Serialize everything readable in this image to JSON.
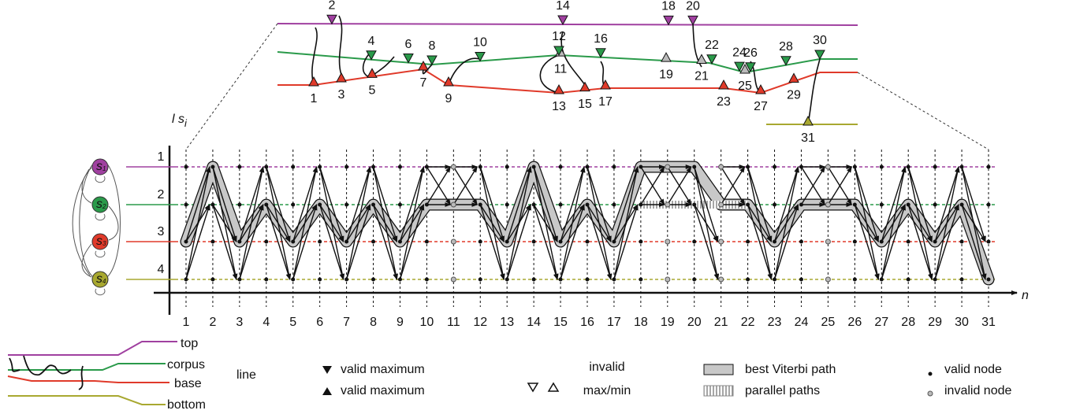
{
  "trace": {
    "extrema": [
      {
        "label": "1",
        "line": "base",
        "kind": "min",
        "valid": true
      },
      {
        "label": "2",
        "line": "top",
        "kind": "max",
        "valid": true
      },
      {
        "label": "3",
        "line": "base",
        "kind": "min",
        "valid": true
      },
      {
        "label": "4",
        "line": "corpus",
        "kind": "max",
        "valid": true
      },
      {
        "label": "5",
        "line": "base",
        "kind": "min",
        "valid": true
      },
      {
        "label": "6",
        "line": "corpus",
        "kind": "max",
        "valid": true
      },
      {
        "label": "7",
        "line": "base",
        "kind": "min",
        "valid": true
      },
      {
        "label": "8",
        "line": "corpus",
        "kind": "max",
        "valid": true
      },
      {
        "label": "9",
        "line": "base",
        "kind": "min",
        "valid": true
      },
      {
        "label": "10",
        "line": "corpus",
        "kind": "max",
        "valid": true
      },
      {
        "label": "11",
        "line": "corpus",
        "kind": "min",
        "valid": false
      },
      {
        "label": "12",
        "line": "corpus",
        "kind": "max",
        "valid": true
      },
      {
        "label": "13",
        "line": "base",
        "kind": "min",
        "valid": true
      },
      {
        "label": "14",
        "line": "top",
        "kind": "max",
        "valid": true
      },
      {
        "label": "15",
        "line": "base",
        "kind": "min",
        "valid": true
      },
      {
        "label": "16",
        "line": "corpus",
        "kind": "max",
        "valid": true
      },
      {
        "label": "17",
        "line": "base",
        "kind": "min",
        "valid": true
      },
      {
        "label": "18",
        "line": "top",
        "kind": "max",
        "valid": true
      },
      {
        "label": "19",
        "line": "corpus",
        "kind": "min",
        "valid": false
      },
      {
        "label": "20",
        "line": "top",
        "kind": "max",
        "valid": true
      },
      {
        "label": "21",
        "line": "corpus",
        "kind": "min",
        "valid": false
      },
      {
        "label": "22",
        "line": "corpus",
        "kind": "max",
        "valid": true
      },
      {
        "label": "23",
        "line": "base",
        "kind": "min",
        "valid": true
      },
      {
        "label": "24",
        "line": "corpus",
        "kind": "max",
        "valid": true
      },
      {
        "label": "25",
        "line": "corpus",
        "kind": "min",
        "valid": false
      },
      {
        "label": "26",
        "line": "corpus",
        "kind": "max",
        "valid": true
      },
      {
        "label": "27",
        "line": "base",
        "kind": "min",
        "valid": true
      },
      {
        "label": "28",
        "line": "corpus",
        "kind": "max",
        "valid": true
      },
      {
        "label": "29",
        "line": "base",
        "kind": "min",
        "valid": true
      },
      {
        "label": "30",
        "line": "corpus",
        "kind": "max",
        "valid": true
      },
      {
        "label": "31",
        "line": "bottom",
        "kind": "min",
        "valid": true
      }
    ]
  },
  "chart": {
    "y_axis_label": "l s",
    "y_axis_subscript": "i",
    "x_axis_label": "n",
    "levels": [
      "1",
      "2",
      "3",
      "4"
    ],
    "states": [
      {
        "label": "s",
        "subscript": "1"
      },
      {
        "label": "s",
        "subscript": "2"
      },
      {
        "label": "s",
        "subscript": "3"
      },
      {
        "label": "s",
        "subscript": "4"
      }
    ],
    "steps": [
      {
        "label": "1",
        "valid": true
      },
      {
        "label": "2",
        "valid": true
      },
      {
        "label": "3",
        "valid": true
      },
      {
        "label": "4",
        "valid": true
      },
      {
        "label": "5",
        "valid": true
      },
      {
        "label": "6",
        "valid": true
      },
      {
        "label": "7",
        "valid": true
      },
      {
        "label": "8",
        "valid": true
      },
      {
        "label": "9",
        "valid": true
      },
      {
        "label": "10",
        "valid": true
      },
      {
        "label": "11",
        "valid": false
      },
      {
        "label": "12",
        "valid": true
      },
      {
        "label": "13",
        "valid": true
      },
      {
        "label": "14",
        "valid": true
      },
      {
        "label": "15",
        "valid": true
      },
      {
        "label": "16",
        "valid": true
      },
      {
        "label": "17",
        "valid": true
      },
      {
        "label": "18",
        "valid": true
      },
      {
        "label": "19",
        "valid": false
      },
      {
        "label": "20",
        "valid": true
      },
      {
        "label": "21",
        "valid": false
      },
      {
        "label": "22",
        "valid": true
      },
      {
        "label": "23",
        "valid": true
      },
      {
        "label": "24",
        "valid": true
      },
      {
        "label": "25",
        "valid": false
      },
      {
        "label": "26",
        "valid": true
      },
      {
        "label": "27",
        "valid": true
      },
      {
        "label": "28",
        "valid": true
      },
      {
        "label": "29",
        "valid": true
      },
      {
        "label": "30",
        "valid": true
      },
      {
        "label": "31",
        "valid": true
      }
    ],
    "best_path": [
      3,
      1,
      3,
      2,
      3,
      2,
      3,
      2,
      3,
      2,
      2,
      2,
      3,
      1,
      3,
      2,
      3,
      1,
      1,
      1,
      2,
      2,
      3,
      2,
      2,
      2,
      3,
      2,
      3,
      2,
      4
    ]
  },
  "legend": {
    "line_title": "line",
    "lines": [
      "top",
      "corpus",
      "base",
      "bottom"
    ],
    "valid": [
      "valid maximum",
      "valid maximum"
    ],
    "invalid": [
      "invalid",
      "max/min"
    ],
    "paths": [
      "best Viterbi path",
      "parallel paths"
    ],
    "nodes": [
      "valid node",
      "invalid node"
    ]
  }
}
